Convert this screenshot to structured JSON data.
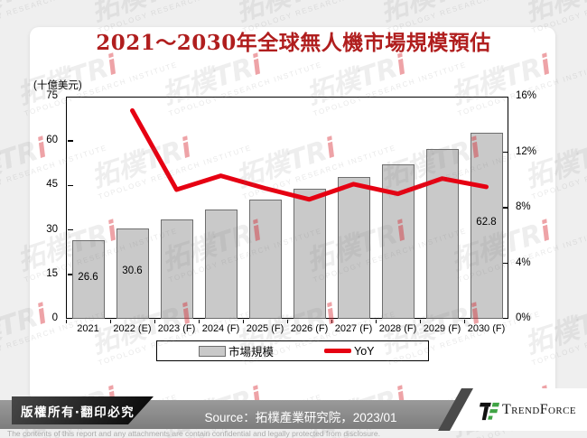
{
  "chart_data": {
    "type": "bar",
    "combo": "bar+line",
    "title": "2021～2030年全球無人機市場規模預估",
    "categories": [
      "2021",
      "2022 (E)",
      "2023 (F)",
      "2024 (F)",
      "2025 (F)",
      "2026 (F)",
      "2027 (F)",
      "2028 (F)",
      "2029 (F)",
      "2030 (F)"
    ],
    "series": [
      {
        "name": "市場規模",
        "type": "bar",
        "axis": "left",
        "color": "#c9c9c9",
        "border_color": "#6e6e6e",
        "values": [
          26.6,
          30.6,
          33.5,
          37.0,
          40.3,
          43.8,
          48.0,
          52.2,
          57.4,
          62.8
        ]
      },
      {
        "name": "YoY",
        "type": "line",
        "axis": "right",
        "color": "#e60012",
        "values": [
          null,
          15.0,
          9.3,
          10.3,
          9.4,
          8.6,
          9.7,
          9.0,
          10.1,
          9.5
        ]
      }
    ],
    "left_axis": {
      "label": "(十億美元)",
      "min": 0,
      "max": 75,
      "ticks": [
        0,
        15,
        30,
        45,
        60,
        75
      ]
    },
    "right_axis": {
      "min": 0,
      "max": 16,
      "ticks": [
        0,
        4,
        8,
        12,
        16
      ],
      "suffix": "%"
    },
    "data_labels": [
      {
        "index": 0,
        "text": "26.6"
      },
      {
        "index": 1,
        "text": "30.6"
      },
      {
        "index": 9,
        "text": "62.8"
      }
    ],
    "grid": false,
    "legend_position": "bottom"
  },
  "watermark": {
    "main": "拓樸TR",
    "i_char": "i",
    "sub": "TOPOLOGY RESEARCH INSTITUTE"
  },
  "footer": {
    "copyright": "版權所有‧翻印必究",
    "source": "Source：拓樸產業研究院，2023/01",
    "brand": "TrendForce",
    "disclaimer": "The contents of this report and any attachments are contain confidential and legally protected from disclosure."
  },
  "theme": {
    "title_color": "#b01e1e",
    "line_color": "#e60012",
    "bar_color": "#c9c9c9",
    "band_color": "#8c8c8c",
    "logo_green": "#3fa344"
  }
}
